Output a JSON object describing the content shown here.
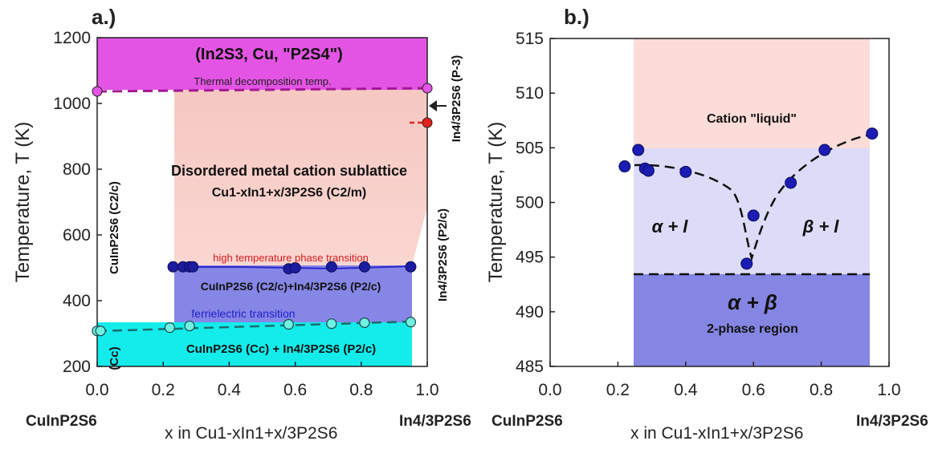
{
  "panel_a": {
    "label": "a.)",
    "ylabel": "Temperature, T (K)",
    "left_end_label": "CuInP2S6",
    "xlabel": "x in Cu1-xIn1+x/3P2S6",
    "right_end_label": "In4/3P2S6",
    "region_top": "(In2S3, Cu, \"P2S4\")",
    "decomp_label": "Thermal decomposition temp.",
    "disordered_line1": "Disordered metal cation sublattice",
    "disordered_line2": "Cu1-xIn1+x/3P2S6 (C2/m)",
    "htpt_label": "high temperature phase transition",
    "mid_region": "CuInP2S6 (C2/c)+In4/3P2S6 (P2/c)",
    "ferri_label": "ferrielectric transition",
    "low_region": "CuInP2S6 (Cc) + In4/3P2S6 (P2/c)",
    "left_vert_c2c": "CuInP2S6 (C2/c)",
    "left_vert_cc": "(Cc)",
    "right_vert_p2c": "In4/3P2S6 (P2/c)",
    "right_vert_p3": "In4/3P2S6 (P-3)",
    "yticks": [
      "200",
      "400",
      "600",
      "800",
      "1000",
      "1200"
    ],
    "xticks": [
      "0.0",
      "0.2",
      "0.4",
      "0.6",
      "0.8",
      "1.0"
    ],
    "colors": {
      "magenta": "#e454e4",
      "pink": "#f8cbc4",
      "lavender": "#8686e6",
      "cyan": "#14ecec",
      "navy": "#1c1ca0",
      "red_point": "#e2221a"
    }
  },
  "panel_b": {
    "label": "b.)",
    "ylabel": "Temperature, T (K)",
    "left_end_label": "CuInP2S6",
    "xlabel": "x in Cu1-xIn1+x/3P2S6",
    "right_end_label": "In4/3P2S6",
    "liquid_label": "Cation \"liquid\"",
    "alpha_l": "α + l",
    "beta_l": "β + l",
    "alpha_beta": "α + β",
    "two_phase": "2-phase region",
    "yticks": [
      "485",
      "490",
      "495",
      "500",
      "505",
      "510",
      "515"
    ],
    "xticks": [
      "0.0",
      "0.2",
      "0.4",
      "0.6",
      "0.8",
      "1.0"
    ],
    "colors": {
      "pink": "#fbdcd9",
      "lightblue": "#dcdcf8",
      "blue": "#8585e4"
    }
  },
  "chart_data": [
    {
      "type": "scatter",
      "title": "a.)",
      "xlabel": "x in Cu1-xIn1+x/3P2S6",
      "ylabel": "Temperature, T (K)",
      "xlim": [
        0,
        1.0
      ],
      "ylim": [
        200,
        1200
      ],
      "series": [
        {
          "name": "high temperature phase transition",
          "x": [
            0.23,
            0.26,
            0.28,
            0.29,
            0.58,
            0.6,
            0.71,
            0.81,
            0.95
          ],
          "y": [
            503,
            503,
            503,
            503,
            497,
            500,
            503,
            503,
            503
          ]
        },
        {
          "name": "ferrielectric transition",
          "x": [
            0.0,
            0.01,
            0.22,
            0.28,
            0.58,
            0.71,
            0.81,
            0.95
          ],
          "y": [
            308,
            308,
            318,
            323,
            328,
            330,
            333,
            335
          ]
        },
        {
          "name": "Thermal decomposition temp.",
          "x": [
            0.0,
            1.0
          ],
          "y": [
            1044,
            1050
          ]
        },
        {
          "name": "In4/3P2S6 (P-3)",
          "x": [
            1.0
          ],
          "y": [
            945
          ]
        }
      ]
    },
    {
      "type": "scatter",
      "title": "b.)",
      "xlabel": "x in Cu1-xIn1+x/3P2S6",
      "ylabel": "Temperature, T (K)",
      "xlim": [
        0,
        1.0
      ],
      "ylim": [
        485,
        515
      ],
      "series": [
        {
          "x": [
            0.22,
            0.26,
            0.28,
            0.29,
            0.4,
            0.58,
            0.6,
            0.71,
            0.81,
            0.95
          ],
          "y": [
            503.3,
            504.8,
            503.1,
            502.9,
            502.8,
            494.4,
            498.8,
            501.8,
            504.8,
            506.3
          ]
        }
      ],
      "solidus": 493.4
    }
  ]
}
